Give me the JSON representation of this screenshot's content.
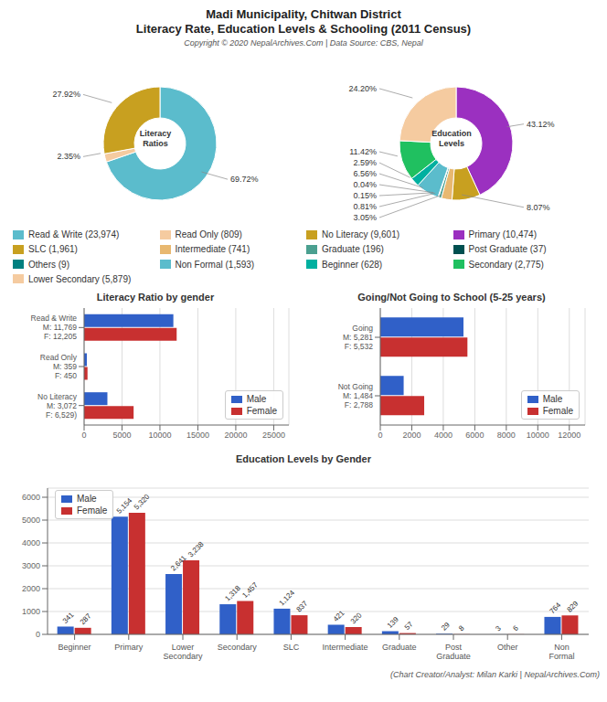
{
  "title": "Madi Municipality, Chitwan District",
  "subtitle": "Literacy Rate, Education Levels & Schooling (2011 Census)",
  "annotations": [
    "Copyright © 2020 NepalArchives.Com | Data Source: CBS, Nepal",
    "(Chart Creator/Analyst: Milan Karki | NepalArchives.Com)"
  ],
  "chart_data": [
    {
      "type": "pie",
      "title": "Literacy\nRatios",
      "categories": [
        "Read & Write (23,974)",
        "Read Only (809)",
        "No Literacy (9,601)"
      ],
      "values": [
        69.72,
        2.35,
        27.92
      ],
      "value_labels": [
        "69.72%",
        "2.35%",
        "27.92%"
      ],
      "colors": [
        "#5bbccc",
        "#f5cba0",
        "#c8a020"
      ],
      "data_labels": true,
      "legend": "bottom"
    },
    {
      "type": "pie",
      "title": "Education\nLevels",
      "categories": [
        "Primary (10,474)",
        "SLC (1,961)",
        "Intermediate (741)",
        "Graduate (196)",
        "Post Graduate (37)",
        "Others (9)",
        "Non Formal (1,593)",
        "Beginner (628)",
        "Secondary (2,775)",
        "Lower Secondary (5,879)"
      ],
      "values": [
        43.12,
        8.07,
        3.05,
        0.81,
        0.15,
        0.04,
        6.56,
        2.59,
        11.42,
        24.2
      ],
      "value_labels": [
        "43.12%",
        "8.07%",
        "3.05%",
        "0.81%",
        "0.15%",
        "0.04%",
        "6.56%",
        "2.59%",
        "11.42%",
        "24.20%"
      ],
      "colors": [
        "#9b30c0",
        "#c8a020",
        "#e8b870",
        "#4ba090",
        "#005050",
        "#008080",
        "#5bbccc",
        "#00b0a0",
        "#20c060",
        "#f5cba0"
      ],
      "data_labels": true,
      "legend": "bottom"
    },
    {
      "type": "bar",
      "orientation": "horizontal",
      "title": "Literacy Ratio by gender",
      "categories": [
        "Read & Write\nM: 11,769\nF: 12,205",
        "Read Only\nM: 359\nF: 450",
        "No Literacy\nM: 3,072\nF: 6,529)"
      ],
      "series": [
        {
          "name": "Male",
          "color": "#3060c8",
          "values": [
            11769,
            359,
            3072
          ]
        },
        {
          "name": "Female",
          "color": "#c83030",
          "values": [
            12205,
            450,
            6529
          ]
        }
      ],
      "xlim": [
        0,
        27000
      ],
      "xticks": [
        0,
        5000,
        10000,
        15000,
        20000,
        25000
      ],
      "grid": true,
      "legend": "lower right"
    },
    {
      "type": "bar",
      "orientation": "horizontal",
      "title": "Going/Not Going to School (5-25 years)",
      "categories": [
        "Going\nM: 5,281\nF: 5,532",
        "Not Going\nM: 1,484\nF: 2,788"
      ],
      "series": [
        {
          "name": "Male",
          "color": "#3060c8",
          "values": [
            5281,
            1484
          ]
        },
        {
          "name": "Female",
          "color": "#c83030",
          "values": [
            5532,
            2788
          ]
        }
      ],
      "xlim": [
        0,
        13000
      ],
      "xticks": [
        0,
        2000,
        4000,
        6000,
        8000,
        10000,
        12000
      ],
      "grid": true,
      "legend": "lower right"
    },
    {
      "type": "bar",
      "title": "Education Levels by Gender",
      "categories": [
        "Beginner",
        "Primary",
        "Lower Secondary",
        "Secondary",
        "SLC",
        "Intermediate",
        "Graduate",
        "Post Graduate",
        "Other",
        "Non Formal"
      ],
      "series": [
        {
          "name": "Male",
          "color": "#3060c8",
          "values": [
            341,
            5154,
            2641,
            1318,
            1124,
            421,
            139,
            29,
            3,
            764
          ],
          "value_labels": [
            "341",
            "5,154",
            "2,641",
            "1,318",
            "1,124",
            "421",
            "139",
            "29",
            "3",
            "764"
          ]
        },
        {
          "name": "Female",
          "color": "#c83030",
          "values": [
            287,
            5320,
            3238,
            1457,
            837,
            320,
            57,
            8,
            6,
            829
          ],
          "value_labels": [
            "287",
            "5,320",
            "3,238",
            "1,457",
            "837",
            "320",
            "57",
            "8",
            "6",
            "829"
          ]
        }
      ],
      "ylim": [
        0,
        6400
      ],
      "yticks": [
        0,
        1000,
        2000,
        3000,
        4000,
        5000,
        6000
      ],
      "grid": true,
      "legend": "upper left",
      "data_labels": true
    }
  ]
}
